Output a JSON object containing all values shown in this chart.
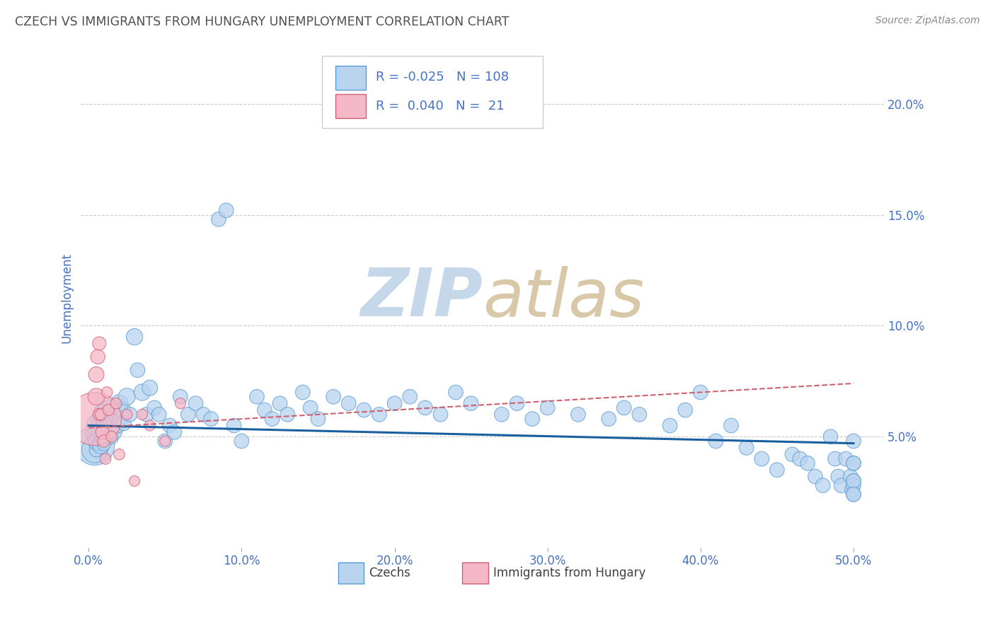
{
  "title": "CZECH VS IMMIGRANTS FROM HUNGARY UNEMPLOYMENT CORRELATION CHART",
  "source": "Source: ZipAtlas.com",
  "ylabel": "Unemployment",
  "xlim": [
    -0.005,
    0.52
  ],
  "ylim": [
    0.0,
    0.225
  ],
  "yticks": [
    0.05,
    0.1,
    0.15,
    0.2
  ],
  "ytick_labels": [
    "5.0%",
    "10.0%",
    "15.0%",
    "20.0%"
  ],
  "xticks": [
    0.0,
    0.1,
    0.2,
    0.3,
    0.4,
    0.5
  ],
  "xtick_labels": [
    "0.0%",
    "10.0%",
    "20.0%",
    "30.0%",
    "40.0%",
    "50.0%"
  ],
  "czech_color": "#b8d4ee",
  "czech_edge_color": "#5b9bd5",
  "hungary_color": "#f4b8c8",
  "hungary_edge_color": "#d06070",
  "trend_czech_color": "#1a5fa0",
  "trend_hungary_color": "#d06070",
  "background_color": "#ffffff",
  "grid_color": "#cccccc",
  "title_color": "#505050",
  "tick_label_color": "#4472c4",
  "axis_label_color": "#4472c4",
  "source_color": "#888888",
  "legend_R_czech": "-0.025",
  "legend_N_czech": "108",
  "legend_R_hungary": "0.040",
  "legend_N_hungary": "21",
  "czech_x": [
    0.003,
    0.004,
    0.004,
    0.005,
    0.005,
    0.005,
    0.006,
    0.006,
    0.007,
    0.007,
    0.008,
    0.008,
    0.009,
    0.009,
    0.01,
    0.01,
    0.01,
    0.011,
    0.011,
    0.012,
    0.012,
    0.013,
    0.014,
    0.015,
    0.015,
    0.016,
    0.017,
    0.018,
    0.019,
    0.02,
    0.021,
    0.022,
    0.023,
    0.025,
    0.027,
    0.03,
    0.032,
    0.035,
    0.038,
    0.04,
    0.043,
    0.046,
    0.05,
    0.053,
    0.056,
    0.06,
    0.065,
    0.07,
    0.075,
    0.08,
    0.085,
    0.09,
    0.095,
    0.1,
    0.11,
    0.115,
    0.12,
    0.125,
    0.13,
    0.14,
    0.145,
    0.15,
    0.16,
    0.17,
    0.18,
    0.19,
    0.2,
    0.21,
    0.22,
    0.23,
    0.24,
    0.25,
    0.27,
    0.28,
    0.29,
    0.3,
    0.32,
    0.34,
    0.35,
    0.36,
    0.38,
    0.39,
    0.4,
    0.41,
    0.42,
    0.43,
    0.44,
    0.45,
    0.46,
    0.465,
    0.47,
    0.475,
    0.48,
    0.485,
    0.488,
    0.49,
    0.492,
    0.495,
    0.498,
    0.499,
    0.5,
    0.5,
    0.5,
    0.5,
    0.5,
    0.5,
    0.5,
    0.5
  ],
  "czech_y": [
    0.05,
    0.046,
    0.044,
    0.052,
    0.048,
    0.044,
    0.055,
    0.048,
    0.053,
    0.047,
    0.058,
    0.046,
    0.054,
    0.048,
    0.06,
    0.053,
    0.047,
    0.057,
    0.05,
    0.062,
    0.054,
    0.06,
    0.055,
    0.063,
    0.05,
    0.058,
    0.052,
    0.06,
    0.055,
    0.065,
    0.058,
    0.062,
    0.056,
    0.068,
    0.06,
    0.095,
    0.08,
    0.07,
    0.06,
    0.072,
    0.063,
    0.06,
    0.048,
    0.055,
    0.052,
    0.068,
    0.06,
    0.065,
    0.06,
    0.058,
    0.148,
    0.152,
    0.055,
    0.048,
    0.068,
    0.062,
    0.058,
    0.065,
    0.06,
    0.07,
    0.063,
    0.058,
    0.068,
    0.065,
    0.062,
    0.06,
    0.065,
    0.068,
    0.063,
    0.06,
    0.07,
    0.065,
    0.06,
    0.065,
    0.058,
    0.063,
    0.06,
    0.058,
    0.063,
    0.06,
    0.055,
    0.062,
    0.07,
    0.048,
    0.055,
    0.045,
    0.04,
    0.035,
    0.042,
    0.04,
    0.038,
    0.032,
    0.028,
    0.05,
    0.04,
    0.032,
    0.028,
    0.04,
    0.032,
    0.026,
    0.048,
    0.038,
    0.03,
    0.028,
    0.024,
    0.038,
    0.03,
    0.024
  ],
  "czech_size": [
    25,
    160,
    70,
    45,
    28,
    20,
    55,
    38,
    28,
    22,
    38,
    28,
    22,
    18,
    50,
    35,
    22,
    32,
    22,
    40,
    28,
    32,
    25,
    35,
    22,
    28,
    22,
    28,
    22,
    32,
    25,
    28,
    22,
    30,
    22,
    28,
    22,
    28,
    22,
    25,
    22,
    22,
    22,
    22,
    22,
    22,
    22,
    22,
    22,
    22,
    22,
    22,
    22,
    22,
    22,
    22,
    22,
    22,
    22,
    22,
    22,
    22,
    22,
    22,
    22,
    22,
    22,
    22,
    22,
    22,
    22,
    22,
    22,
    22,
    22,
    22,
    22,
    22,
    22,
    22,
    22,
    22,
    22,
    22,
    22,
    22,
    22,
    22,
    22,
    22,
    22,
    22,
    22,
    22,
    22,
    22,
    22,
    22,
    22,
    22,
    22,
    22,
    22,
    22,
    22,
    22,
    22,
    22
  ],
  "hungary_x": [
    0.004,
    0.005,
    0.005,
    0.006,
    0.007,
    0.007,
    0.008,
    0.009,
    0.01,
    0.011,
    0.012,
    0.013,
    0.015,
    0.018,
    0.02,
    0.025,
    0.03,
    0.035,
    0.04,
    0.05,
    0.06
  ],
  "hungary_y": [
    0.058,
    0.068,
    0.078,
    0.086,
    0.092,
    0.06,
    0.06,
    0.052,
    0.048,
    0.04,
    0.07,
    0.062,
    0.05,
    0.065,
    0.042,
    0.06,
    0.03,
    0.06,
    0.055,
    0.048,
    0.065
  ],
  "hungary_size": [
    650,
    65,
    55,
    48,
    42,
    35,
    30,
    42,
    35,
    28,
    28,
    30,
    28,
    28,
    28,
    26,
    26,
    26,
    26,
    26,
    26
  ],
  "czech_trend_y": [
    0.055,
    0.047
  ],
  "hungary_trend_y": [
    0.054,
    0.074
  ],
  "trend_x": [
    0.0,
    0.5
  ]
}
